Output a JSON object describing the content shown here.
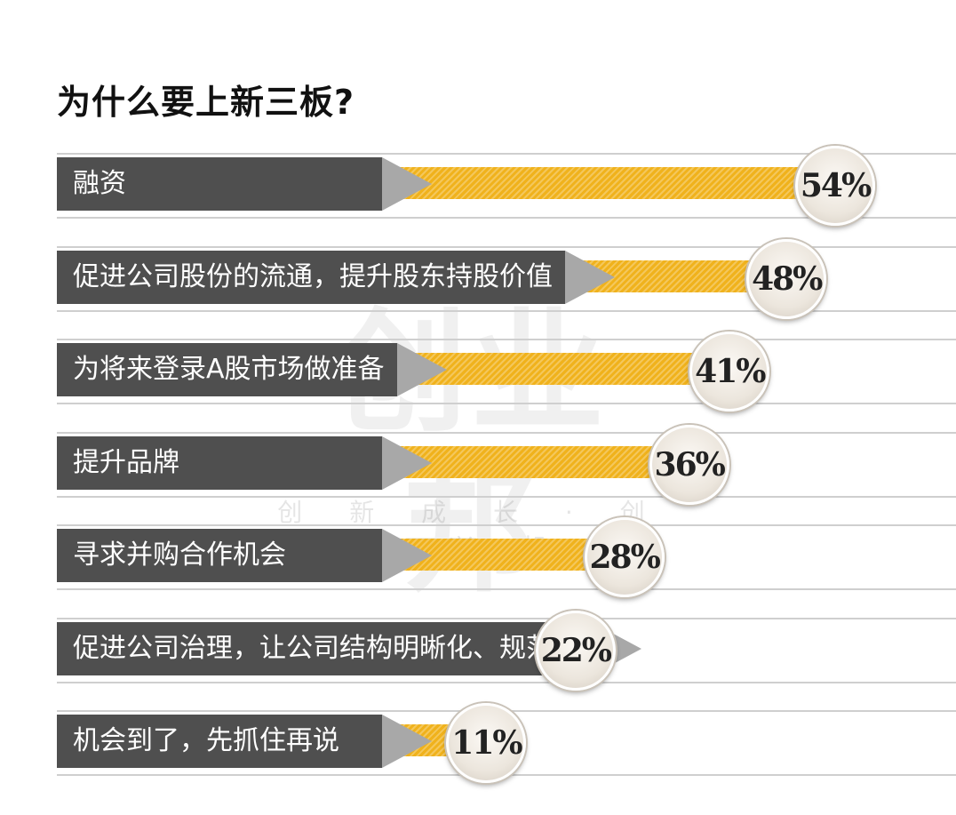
{
  "title": "为什么要上新三板?",
  "watermark": {
    "logo_text": "创业邦",
    "slogan": "创 新 成 长 · 创 业 兴 邦"
  },
  "colors": {
    "label_bg": "#4f4f4f",
    "bar": "#f0b21c",
    "arrow": "#a8a8a8",
    "badge": "#eee8e0"
  },
  "chart_data": {
    "type": "bar",
    "orientation": "horizontal",
    "title": "为什么要上新三板?",
    "categories": [
      "融资",
      "促进公司股份的流通，提升股东持股价值",
      "为将来登录A股市场做准备",
      "提升品牌",
      "寻求并购合作机会",
      "促进公司治理，让公司结构明晰化、规范化",
      "机会到了，先抓住再说"
    ],
    "values": [
      54,
      48,
      41,
      36,
      28,
      22,
      11
    ],
    "value_labels": [
      "54%",
      "48%",
      "41%",
      "36%",
      "28%",
      "22%",
      "11%"
    ],
    "unit": "%"
  }
}
